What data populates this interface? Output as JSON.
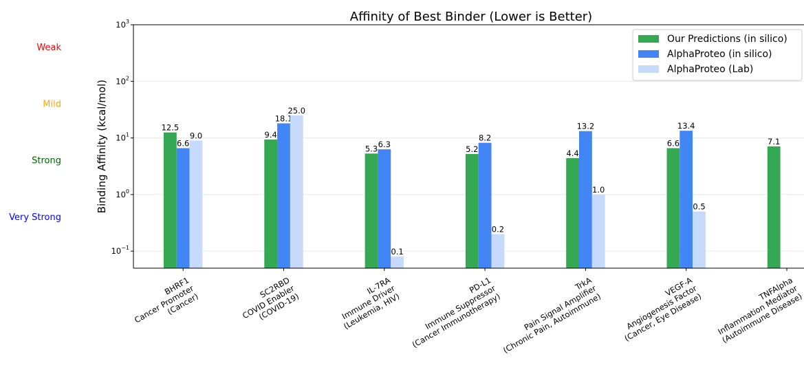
{
  "chart_data": {
    "type": "bar",
    "title": "Affinity of Best Binder (Lower is Better)",
    "xlabel": "",
    "ylabel": "Binding Affinity (kcal/mol)",
    "yscale": "log",
    "ylim": [
      0.05,
      1000
    ],
    "yticks": [
      {
        "base": "10",
        "exp": "3",
        "value": 1000
      },
      {
        "base": "10",
        "exp": "2",
        "value": 100
      },
      {
        "base": "10",
        "exp": "1",
        "value": 10
      },
      {
        "base": "10",
        "exp": "0",
        "value": 1
      },
      {
        "base": "10",
        "exp": "−1",
        "value": 0.1
      }
    ],
    "grid": true,
    "legend_position": "top-right",
    "categories": [
      {
        "lines": [
          "BHRF1",
          "Cancer Promoter",
          "(Cancer)"
        ]
      },
      {
        "lines": [
          "SC2RBD",
          "COVID Enabler",
          "(COVID-19)"
        ]
      },
      {
        "lines": [
          "IL-7RA",
          "Immune Driver",
          "(Leukemia, HIV)"
        ]
      },
      {
        "lines": [
          "PD-L1",
          "Immune Suppressor",
          "(Cancer Immunotherapy)"
        ]
      },
      {
        "lines": [
          "TrkA",
          "Pain Signal Amplifier",
          "(Chronic Pain, Autoimmune)"
        ]
      },
      {
        "lines": [
          "VEGF-A",
          "Angiogenesis Factor",
          "(Cancer, Eye Disease)"
        ]
      },
      {
        "lines": [
          "TNFAlpha",
          "Inflammation Mediator",
          "(Autoimmune Disease)"
        ]
      }
    ],
    "series": [
      {
        "name": "Our Predictions (in silico)",
        "color": "#34a853",
        "values": [
          12.5,
          9.4,
          5.3,
          5.2,
          4.4,
          6.6,
          7.1
        ],
        "labels": [
          "12.5",
          "9.4",
          "5.3",
          "5.2",
          "4.4",
          "6.6",
          "7.1"
        ]
      },
      {
        "name": "AlphaProteo (in silico)",
        "color": "#4285f4",
        "values": [
          6.6,
          18.1,
          6.3,
          8.2,
          13.2,
          13.4,
          null
        ],
        "labels": [
          "6.6",
          "18.1",
          "6.3",
          "8.2",
          "13.2",
          "13.4",
          null
        ]
      },
      {
        "name": "AlphaProteo (Lab)",
        "color": "#c6dafc",
        "values": [
          9.0,
          25.0,
          0.08,
          0.2,
          1.0,
          0.5,
          null
        ],
        "labels": [
          "9.0",
          "25.0",
          "0.1",
          "0.2",
          "1.0",
          "0.5",
          null
        ]
      }
    ],
    "strength_labels": [
      {
        "text": "Weak",
        "color": "#ff0000",
        "value": 1000
      },
      {
        "text": "Mild",
        "color": "#ffa500",
        "value": 100
      },
      {
        "text": "Strong",
        "color": "#006400",
        "value": 10
      },
      {
        "text": "Very Strong",
        "color": "#0000ff",
        "value": 1
      }
    ]
  }
}
